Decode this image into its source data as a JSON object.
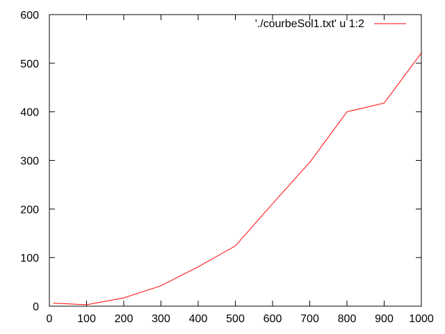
{
  "chart_data": {
    "type": "line",
    "x": [
      10,
      100,
      200,
      300,
      400,
      500,
      600,
      700,
      800,
      900,
      1000
    ],
    "series": [
      {
        "name": "'./courbeSol1.txt' u 1:2",
        "color": "#ff0000",
        "values": [
          6,
          3,
          17,
          42,
          81,
          124,
          211,
          296,
          400,
          418,
          521
        ]
      }
    ],
    "xlim": [
      0,
      1000
    ],
    "ylim": [
      0,
      600
    ],
    "xticks": [
      0,
      100,
      200,
      300,
      400,
      500,
      600,
      700,
      800,
      900,
      1000
    ],
    "yticks": [
      0,
      100,
      200,
      300,
      400,
      500,
      600
    ],
    "grid": false,
    "legend_position": "top-right",
    "title": "",
    "xlabel": "",
    "ylabel": ""
  }
}
